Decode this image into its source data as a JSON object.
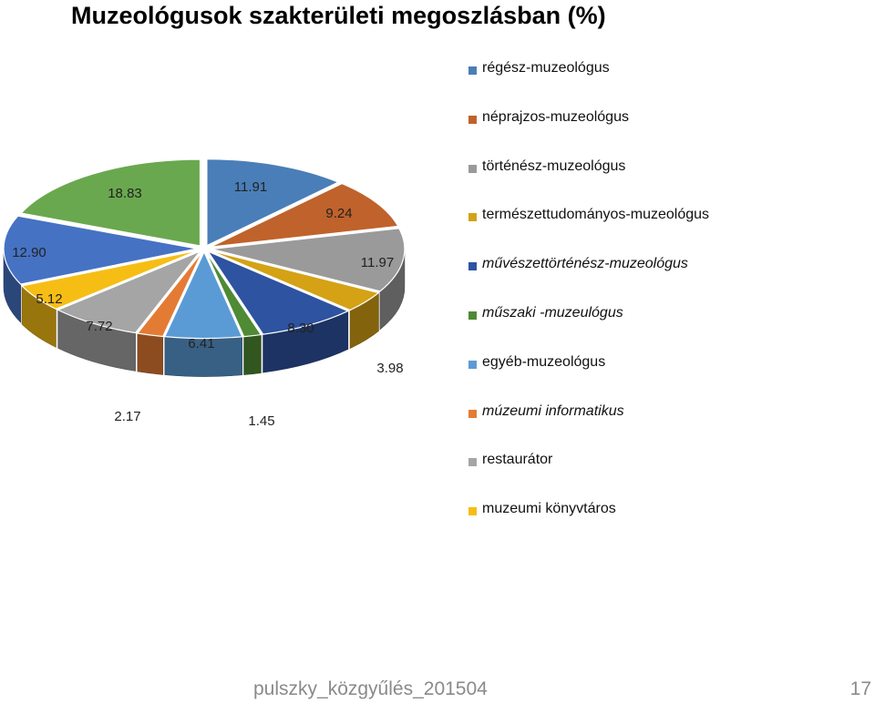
{
  "title": "Muzeológusok szakterületi megoszlásban (%)",
  "footer": {
    "text": "pulszky_közgyűlés_201504",
    "page": "17"
  },
  "chart_data": {
    "type": "pie",
    "title": "Muzeológusok szakterületi megoszlásban (%)",
    "legend_position": "right",
    "style": "3d-exploded",
    "slices": [
      {
        "label": "régész-muzeológus",
        "value": 11.91,
        "display": "11.91",
        "color": "#4a7eb8",
        "italic": false
      },
      {
        "label": "néprajzos-muzeológus",
        "value": 9.24,
        "display": "9.24",
        "color": "#c0622b",
        "italic": false
      },
      {
        "label": "történész-muzeológus",
        "value": 11.97,
        "display": "11.97",
        "color": "#9a9a9a",
        "italic": false
      },
      {
        "label": "természettudományos-muzeológus",
        "value": 3.98,
        "display": "3.98",
        "color": "#d4a214",
        "italic": false
      },
      {
        "label": "művészettörténész-muzeológus",
        "value": 8.3,
        "display": "8.30",
        "color": "#2e53a0",
        "italic": true
      },
      {
        "label": "műszaki -muzeulógus",
        "value": 1.45,
        "display": "1.45",
        "color": "#4f8a34",
        "italic": true
      },
      {
        "label": "egyéb-muzeológus",
        "value": 6.41,
        "display": "6.41",
        "color": "#5b9bd5",
        "italic": false
      },
      {
        "label": "múzeumi informatikus",
        "value": 2.17,
        "display": "2.17",
        "color": "#e37b34",
        "italic": true
      },
      {
        "label": "restaurátor",
        "value": 7.72,
        "display": "7.72",
        "color": "#a5a5a5",
        "italic": false
      },
      {
        "label": "muzeumi könyvtáros",
        "value": 5.12,
        "display": "5.12",
        "color": "#f6bd15",
        "italic": false
      },
      {
        "label": "",
        "value": 12.9,
        "display": "12.90",
        "color": "#4672c4",
        "italic": false
      },
      {
        "label": "",
        "value": 18.83,
        "display": "18.83",
        "color": "#6aa84f",
        "italic": false
      }
    ]
  }
}
